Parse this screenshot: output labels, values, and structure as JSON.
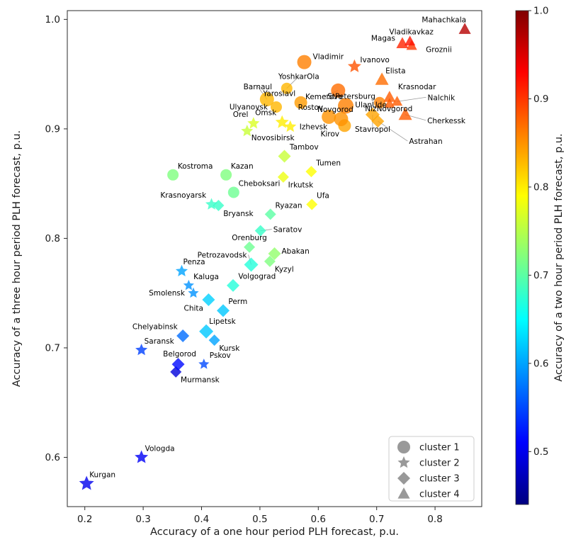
{
  "figure": {
    "background": "#ffffff",
    "text_color": "#1a1a1a",
    "spine_color": "#2b2b2b",
    "leader_line_color": "#9a9a9a"
  },
  "chart_data": {
    "type": "scatter",
    "title": "",
    "xlabel": "Accuracy of a one hour period PLH forecast, p.u.",
    "ylabel": "Accuracy of a three hour period PLH forecast, p.u.",
    "xlim": [
      0.17,
      0.88
    ],
    "ylim": [
      0.555,
      1.008
    ],
    "x_ticks": [
      0.2,
      0.3,
      0.4,
      0.5,
      0.6,
      0.7,
      0.8
    ],
    "x_tick_labels": [
      "0.2",
      "0.3",
      "0.4",
      "0.5",
      "0.6",
      "0.7",
      "0.8"
    ],
    "y_ticks": [
      0.6,
      0.7,
      0.8,
      0.9,
      1.0
    ],
    "y_tick_labels": [
      "0.6",
      "0.7",
      "0.8",
      "0.9",
      "1.0"
    ],
    "grid": false,
    "marker_alpha": 0.8,
    "colorbar": {
      "label": "Accuracy of a two hour period PLH forecast, p.u.",
      "vmin": 0.44,
      "vmax": 1.0,
      "ticks": [
        1.0,
        0.9,
        0.8,
        0.7,
        0.6,
        0.5
      ],
      "tick_labels": [
        "1.0",
        "0.9",
        "0.8",
        "0.7",
        "0.6",
        "0.5"
      ],
      "colormap": "jet"
    },
    "legend": {
      "position": "lower right",
      "marker_color": "#999999",
      "items": [
        {
          "shape": "circle",
          "label": "cluster 1"
        },
        {
          "shape": "star",
          "label": "cluster 2"
        },
        {
          "shape": "diamond",
          "label": "cluster 3"
        },
        {
          "shape": "triangle",
          "label": "cluster 4"
        }
      ]
    },
    "cluster_shapes": {
      "1": "circle",
      "2": "star",
      "3": "diamond",
      "4": "triangle"
    },
    "points": [
      {
        "name": "Kurgan",
        "x": 0.203,
        "y": 0.576,
        "c": 0.5,
        "cluster": 2,
        "r": 11,
        "lx": 4,
        "ly": -9,
        "la": "start"
      },
      {
        "name": "Vologda",
        "x": 0.297,
        "y": 0.6,
        "c": 0.505,
        "cluster": 2,
        "r": 10,
        "lx": 5,
        "ly": -9,
        "la": "start"
      },
      {
        "name": "Murmansk",
        "x": 0.356,
        "y": 0.678,
        "c": 0.49,
        "cluster": 3,
        "r": 8,
        "lp": "br"
      },
      {
        "name": "Belgorod",
        "x": 0.36,
        "y": 0.685,
        "c": 0.515,
        "cluster": 3,
        "r": 9,
        "lx": 2,
        "ly": -11,
        "la": "middle"
      },
      {
        "name": "Pskov",
        "x": 0.404,
        "y": 0.685,
        "c": 0.55,
        "cluster": 2,
        "r": 8,
        "lx": 8,
        "ly": -9,
        "la": "start"
      },
      {
        "name": "Saransk",
        "x": 0.297,
        "y": 0.698,
        "c": 0.545,
        "cluster": 2,
        "r": 9,
        "lx": 4,
        "ly": -9,
        "la": "start"
      },
      {
        "name": "Kursk",
        "x": 0.422,
        "y": 0.707,
        "c": 0.6,
        "cluster": 3,
        "r": 8,
        "lp": "br"
      },
      {
        "name": "Lipetsk",
        "x": 0.408,
        "y": 0.715,
        "c": 0.62,
        "cluster": 3,
        "r": 10,
        "lx": 4,
        "ly": -11,
        "la": "start"
      },
      {
        "name": "Chelyabinsk",
        "x": 0.368,
        "y": 0.711,
        "c": 0.57,
        "cluster": 3,
        "r": 9,
        "lp": "tl"
      },
      {
        "name": "Perm",
        "x": 0.437,
        "y": 0.734,
        "c": 0.62,
        "cluster": 3,
        "r": 9,
        "lp": "tr"
      },
      {
        "name": "Chita",
        "x": 0.412,
        "y": 0.744,
        "c": 0.625,
        "cluster": 3,
        "r": 9,
        "lp": "bl"
      },
      {
        "name": "Smolensk",
        "x": 0.386,
        "y": 0.75,
        "c": 0.59,
        "cluster": 2,
        "r": 8,
        "lp": "l"
      },
      {
        "name": "Kaluga",
        "x": 0.378,
        "y": 0.757,
        "c": 0.59,
        "cluster": 2,
        "r": 8,
        "lp": "tr"
      },
      {
        "name": "Volgograd",
        "x": 0.454,
        "y": 0.757,
        "c": 0.67,
        "cluster": 3,
        "r": 9,
        "lp": "tr"
      },
      {
        "name": "Penza",
        "x": 0.366,
        "y": 0.77,
        "c": 0.6,
        "cluster": 2,
        "r": 9,
        "lx": 2,
        "ly": -10,
        "la": "start"
      },
      {
        "name": "Petrozavodsk",
        "x": 0.485,
        "y": 0.776,
        "c": 0.67,
        "cluster": 3,
        "r": 10,
        "lx": -6,
        "ly": -10,
        "la": "end",
        "leader": true
      },
      {
        "name": "Kyzyl",
        "x": 0.517,
        "y": 0.779,
        "c": 0.72,
        "cluster": 3,
        "r": 8,
        "lp": "br"
      },
      {
        "name": "Abakan",
        "x": 0.525,
        "y": 0.786,
        "c": 0.73,
        "cluster": 3,
        "r": 9,
        "lx": 10,
        "ly": 0,
        "la": "start"
      },
      {
        "name": "Orenburg",
        "x": 0.482,
        "y": 0.792,
        "c": 0.71,
        "cluster": 3,
        "r": 8,
        "lx": 0,
        "ly": -10,
        "la": "middle"
      },
      {
        "name": "Saratov",
        "x": 0.501,
        "y": 0.807,
        "c": 0.68,
        "cluster": 3,
        "r": 8,
        "lx": 18,
        "ly": 2,
        "la": "start",
        "leader": true
      },
      {
        "name": "Ryazan",
        "x": 0.518,
        "y": 0.822,
        "c": 0.7,
        "cluster": 3,
        "r": 8,
        "lp": "tr"
      },
      {
        "name": "Bryansk",
        "x": 0.429,
        "y": 0.83,
        "c": 0.68,
        "cluster": 3,
        "r": 8,
        "lp": "br"
      },
      {
        "name": "Krasnoyarsk",
        "x": 0.417,
        "y": 0.831,
        "c": 0.68,
        "cluster": 2,
        "r": 9,
        "lp": "tl"
      },
      {
        "name": "Ufa",
        "x": 0.589,
        "y": 0.831,
        "c": 0.79,
        "cluster": 3,
        "r": 8,
        "lp": "tr"
      },
      {
        "name": "Cheboksari",
        "x": 0.455,
        "y": 0.842,
        "c": 0.71,
        "cluster": 1,
        "r": 8,
        "lp": "tr"
      },
      {
        "name": "Irkutsk",
        "x": 0.54,
        "y": 0.856,
        "c": 0.78,
        "cluster": 3,
        "r": 8,
        "lp": "br"
      },
      {
        "name": "Kazan",
        "x": 0.442,
        "y": 0.858,
        "c": 0.72,
        "cluster": 1,
        "r": 8,
        "lp": "tr"
      },
      {
        "name": "Kostroma",
        "x": 0.351,
        "y": 0.858,
        "c": 0.72,
        "cluster": 1,
        "r": 8,
        "lp": "tr"
      },
      {
        "name": "Tumen",
        "x": 0.588,
        "y": 0.861,
        "c": 0.79,
        "cluster": 3,
        "r": 8,
        "lp": "tr"
      },
      {
        "name": "Tambov",
        "x": 0.542,
        "y": 0.875,
        "c": 0.76,
        "cluster": 3,
        "r": 9,
        "lp": "tr"
      },
      {
        "name": "Novosibirsk",
        "x": 0.478,
        "y": 0.898,
        "c": 0.76,
        "cluster": 2,
        "r": 9,
        "lx": 6,
        "ly": 13,
        "la": "start"
      },
      {
        "name": "Orel",
        "x": 0.489,
        "y": 0.905,
        "c": 0.77,
        "cluster": 2,
        "r": 9,
        "lp": "tl"
      },
      {
        "name": "Omsk",
        "x": 0.538,
        "y": 0.906,
        "c": 0.8,
        "cluster": 2,
        "r": 10,
        "lp": "tl"
      },
      {
        "name": "Izhevsk",
        "x": 0.552,
        "y": 0.902,
        "c": 0.8,
        "cluster": 2,
        "r": 9,
        "lp": "r"
      },
      {
        "name": "Kirov",
        "x": 0.645,
        "y": 0.903,
        "c": 0.84,
        "cluster": 1,
        "r": 9,
        "lp": "bl"
      },
      {
        "name": "Novgorod",
        "x": 0.639,
        "y": 0.909,
        "c": 0.85,
        "cluster": 1,
        "r": 10,
        "lx": -8,
        "ly": -10,
        "la": "middle"
      },
      {
        "name": "Rostov",
        "x": 0.618,
        "y": 0.911,
        "c": 0.85,
        "cluster": 1,
        "r": 10,
        "lp": "tl"
      },
      {
        "name": "Stavropol",
        "x": 0.693,
        "y": 0.913,
        "c": 0.84,
        "cluster": 3,
        "r": 10,
        "lx": 0,
        "ly": 24,
        "la": "middle",
        "leader": true
      },
      {
        "name": "Astrahan",
        "x": 0.702,
        "y": 0.907,
        "c": 0.84,
        "cluster": 3,
        "r": 9,
        "lx": 44,
        "ly": 32,
        "la": "start",
        "leader": true
      },
      {
        "name": "Cherkessk",
        "x": 0.749,
        "y": 0.913,
        "c": 0.88,
        "cluster": 4,
        "r": 10,
        "lx": 31,
        "ly": 12,
        "la": "start",
        "leader": true
      },
      {
        "name": "Ulyanovsk",
        "x": 0.528,
        "y": 0.92,
        "c": 0.83,
        "cluster": 1,
        "r": 8,
        "lp": "l"
      },
      {
        "name": "StPetersburg",
        "x": 0.647,
        "y": 0.921,
        "c": 0.86,
        "cluster": 1,
        "r": 11,
        "lx": 8,
        "ly": -10,
        "la": "middle"
      },
      {
        "name": "UlanUde",
        "x": 0.722,
        "y": 0.923,
        "c": 0.88,
        "cluster": 4,
        "r": 8,
        "lx": -4,
        "ly": 5,
        "la": "end"
      },
      {
        "name": "Nalchik",
        "x": 0.735,
        "y": 0.925,
        "c": 0.88,
        "cluster": 4,
        "r": 8,
        "lx": 43,
        "ly": -2,
        "la": "start",
        "leader": true
      },
      {
        "name": "NizNovgorod",
        "x": 0.705,
        "y": 0.924,
        "c": 0.86,
        "cluster": 1,
        "r": 8,
        "lx": 13,
        "ly": 12,
        "la": "middle",
        "leader": true
      },
      {
        "name": "Yaroslavl",
        "x": 0.57,
        "y": 0.924,
        "c": 0.845,
        "cluster": 1,
        "r": 9,
        "lp": "tl"
      },
      {
        "name": "Barnaul",
        "x": 0.512,
        "y": 0.927,
        "c": 0.83,
        "cluster": 1,
        "r": 10,
        "lx": -13,
        "ly": -14,
        "la": "middle",
        "leader": true
      },
      {
        "name": "Krasnodar",
        "x": 0.722,
        "y": 0.929,
        "c": 0.88,
        "cluster": 4,
        "r": 9,
        "lx": 12,
        "ly": -11,
        "la": "start"
      },
      {
        "name": "Kemerovo",
        "x": 0.634,
        "y": 0.935,
        "c": 0.87,
        "cluster": 1,
        "r": 10,
        "lx": -20,
        "ly": 12,
        "la": "middle",
        "leader": true
      },
      {
        "name": "YoshkarOla",
        "x": 0.546,
        "y": 0.937,
        "c": 0.83,
        "cluster": 1,
        "r": 8,
        "lx": 17,
        "ly": -13,
        "la": "middle",
        "leader": true
      },
      {
        "name": "Elista",
        "x": 0.709,
        "y": 0.945,
        "c": 0.87,
        "cluster": 4,
        "r": 10,
        "lx": 5,
        "ly": -9,
        "la": "start"
      },
      {
        "name": "Vladimir",
        "x": 0.576,
        "y": 0.961,
        "c": 0.86,
        "cluster": 1,
        "r": 10,
        "lx": 12,
        "ly": -4,
        "la": "start"
      },
      {
        "name": "Ivanovo",
        "x": 0.662,
        "y": 0.957,
        "c": 0.885,
        "cluster": 2,
        "r": 10,
        "lx": 8,
        "ly": -6,
        "la": "start"
      },
      {
        "name": "Groznii",
        "x": 0.76,
        "y": 0.976,
        "c": 0.9,
        "cluster": 4,
        "r": 8,
        "lx": 20,
        "ly": 9,
        "la": "start"
      },
      {
        "name": "Magas",
        "x": 0.744,
        "y": 0.978,
        "c": 0.91,
        "cluster": 4,
        "r": 9,
        "lx": -10,
        "ly": -4,
        "la": "end"
      },
      {
        "name": "Vladikavkaz",
        "x": 0.757,
        "y": 0.98,
        "c": 0.92,
        "cluster": 4,
        "r": 8,
        "lx": 2,
        "ly": -10,
        "la": "middle"
      },
      {
        "name": "Mahachkala",
        "x": 0.851,
        "y": 0.991,
        "c": 0.97,
        "cluster": 4,
        "r": 9,
        "lx": 2,
        "ly": -10,
        "la": "end"
      }
    ]
  }
}
